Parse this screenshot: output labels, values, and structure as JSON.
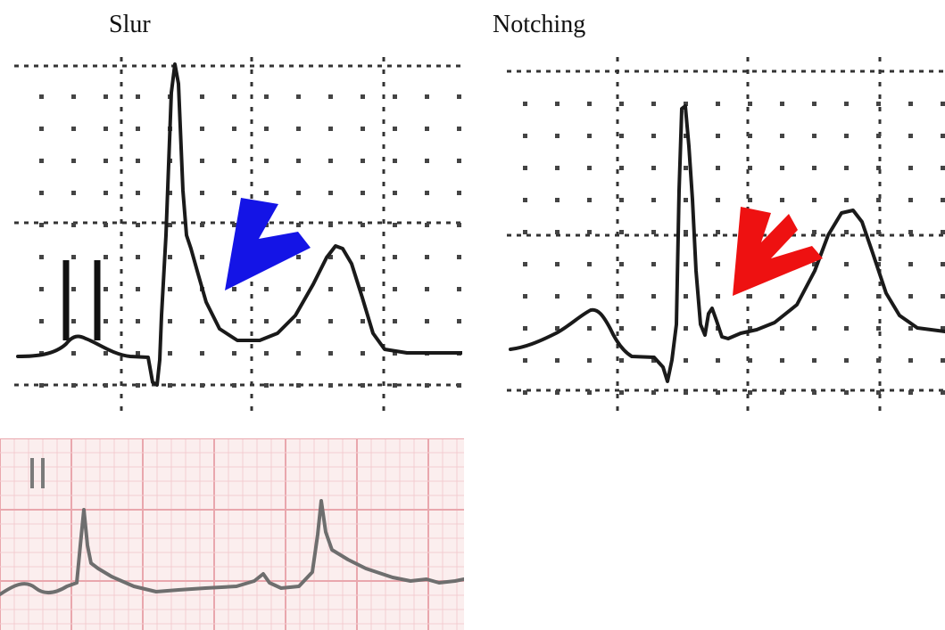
{
  "captions": {
    "slur": "Slur",
    "notching": "Notching"
  },
  "panels": {
    "slur": {
      "lead_glyph": "II",
      "arrow_color": "#1414e6",
      "trace_color": "#1a1a1a"
    },
    "notching": {
      "arrow_color": "#ee1111",
      "trace_color": "#1a1a1a"
    },
    "strip": {
      "lead_glyph": "II",
      "paper_color": "#fbeeee",
      "grid_color": "#e9a7ad",
      "trace_color": "#6e6e6e"
    }
  }
}
